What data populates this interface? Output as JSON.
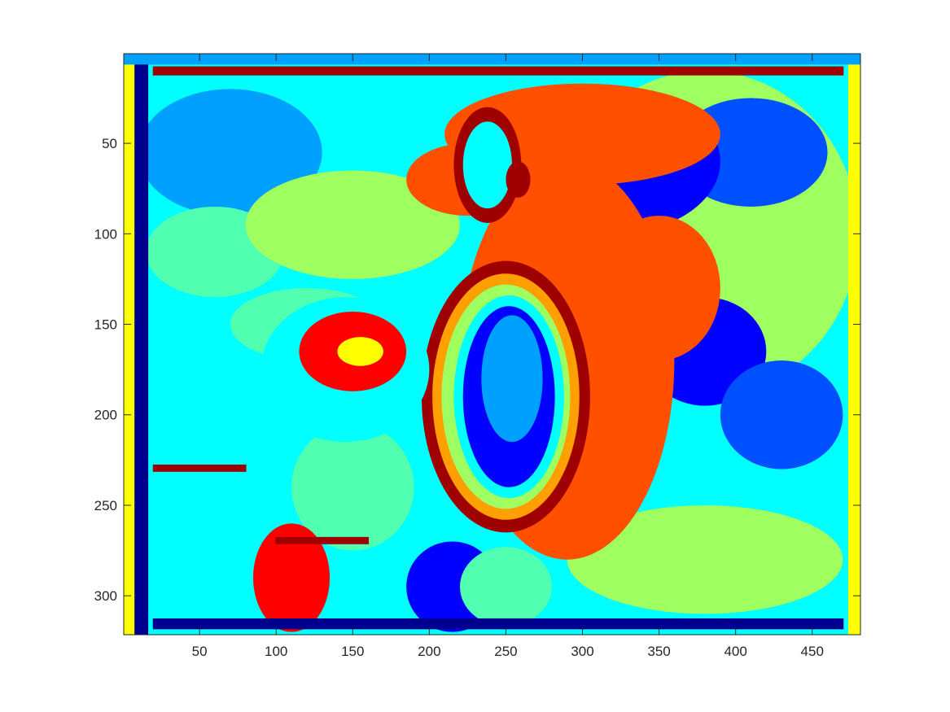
{
  "chart_data": {
    "type": "heatmap",
    "title": "",
    "xlabel": "",
    "ylabel": "",
    "xlim": [
      1,
      481
    ],
    "ylim": [
      1,
      321
    ],
    "y_reversed": true,
    "colormap": "jet",
    "color_levels": 12,
    "x_ticks": [
      50,
      100,
      150,
      200,
      250,
      300,
      350,
      400,
      450
    ],
    "x_tick_labels": [
      "50",
      "100",
      "150",
      "200",
      "250",
      "300",
      "350",
      "400",
      "450"
    ],
    "y_ticks": [
      50,
      100,
      150,
      200,
      250,
      300
    ],
    "y_tick_labels": [
      "50",
      "100",
      "150",
      "200",
      "250",
      "300"
    ],
    "grid": false,
    "legend": "none",
    "palette": [
      "#00008F",
      "#0000FF",
      "#0050FF",
      "#00A0FF",
      "#00FFFF",
      "#50FFB0",
      "#A0FF60",
      "#FFFF00",
      "#FFA000",
      "#FF5000",
      "#FF0000",
      "#9F0000"
    ],
    "regions": [
      {
        "type": "rect",
        "x": [
          1,
          481
        ],
        "y": [
          1,
          321
        ],
        "level": 4
      },
      {
        "type": "ellipse",
        "cx": 70,
        "cy": 55,
        "rx": 60,
        "ry": 35,
        "level": 3
      },
      {
        "type": "ellipse",
        "cx": 60,
        "cy": 110,
        "rx": 45,
        "ry": 25,
        "level": 5
      },
      {
        "type": "ellipse",
        "cx": 150,
        "cy": 95,
        "rx": 70,
        "ry": 30,
        "level": 6
      },
      {
        "type": "ellipse",
        "cx": 120,
        "cy": 150,
        "rx": 50,
        "ry": 20,
        "level": 5
      },
      {
        "type": "ellipse",
        "cx": 60,
        "cy": 250,
        "rx": 55,
        "ry": 50,
        "level": 4
      },
      {
        "type": "ellipse",
        "cx": 150,
        "cy": 240,
        "rx": 40,
        "ry": 35,
        "level": 5
      },
      {
        "type": "ellipse",
        "cx": 380,
        "cy": 100,
        "rx": 100,
        "ry": 90,
        "level": 6
      },
      {
        "type": "ellipse",
        "cx": 410,
        "cy": 55,
        "rx": 50,
        "ry": 30,
        "level": 2
      },
      {
        "type": "ellipse",
        "cx": 380,
        "cy": 165,
        "rx": 40,
        "ry": 30,
        "level": 1
      },
      {
        "type": "ellipse",
        "cx": 430,
        "cy": 200,
        "rx": 40,
        "ry": 30,
        "level": 2
      },
      {
        "type": "ellipse",
        "cx": 380,
        "cy": 280,
        "rx": 90,
        "ry": 30,
        "level": 6
      },
      {
        "type": "ellipse",
        "cx": 320,
        "cy": 60,
        "rx": 70,
        "ry": 40,
        "level": 1
      },
      {
        "type": "ellipse",
        "cx": 290,
        "cy": 170,
        "rx": 70,
        "ry": 110,
        "level": 9
      },
      {
        "type": "ellipse",
        "cx": 300,
        "cy": 45,
        "rx": 90,
        "ry": 28,
        "level": 9
      },
      {
        "type": "ellipse",
        "cx": 225,
        "cy": 70,
        "rx": 40,
        "ry": 20,
        "level": 9
      },
      {
        "type": "ellipse",
        "cx": 350,
        "cy": 130,
        "rx": 40,
        "ry": 40,
        "level": 9
      },
      {
        "type": "ellipse",
        "cx": 110,
        "cy": 290,
        "rx": 25,
        "ry": 30,
        "level": 10
      },
      {
        "type": "ellipse",
        "cx": 250,
        "cy": 190,
        "rx": 55,
        "ry": 75,
        "level": 11
      },
      {
        "type": "ellipse",
        "cx": 250,
        "cy": 190,
        "rx": 48,
        "ry": 68,
        "level": 8
      },
      {
        "type": "ellipse",
        "cx": 250,
        "cy": 190,
        "rx": 42,
        "ry": 62,
        "level": 6
      },
      {
        "type": "ellipse",
        "cx": 252,
        "cy": 190,
        "rx": 36,
        "ry": 56,
        "level": 4
      },
      {
        "type": "ellipse",
        "cx": 252,
        "cy": 190,
        "rx": 30,
        "ry": 50,
        "level": 1
      },
      {
        "type": "ellipse",
        "cx": 254,
        "cy": 180,
        "rx": 20,
        "ry": 35,
        "level": 3
      },
      {
        "type": "ellipse",
        "cx": 238,
        "cy": 62,
        "rx": 22,
        "ry": 32,
        "level": 11
      },
      {
        "type": "ellipse",
        "cx": 238,
        "cy": 62,
        "rx": 16,
        "ry": 24,
        "level": 4
      },
      {
        "type": "ellipse",
        "cx": 258,
        "cy": 70,
        "rx": 8,
        "ry": 10,
        "level": 11
      },
      {
        "type": "ellipse",
        "cx": 145,
        "cy": 175,
        "rx": 55,
        "ry": 40,
        "level": 4
      },
      {
        "type": "ellipse",
        "cx": 150,
        "cy": 165,
        "rx": 35,
        "ry": 22,
        "level": 10
      },
      {
        "type": "ellipse",
        "cx": 155,
        "cy": 165,
        "rx": 15,
        "ry": 8,
        "level": 7
      },
      {
        "type": "ellipse",
        "cx": 215,
        "cy": 295,
        "rx": 30,
        "ry": 25,
        "level": 1
      },
      {
        "type": "ellipse",
        "cx": 250,
        "cy": 295,
        "rx": 30,
        "ry": 22,
        "level": 5
      },
      {
        "type": "rect",
        "x": [
          1,
          8
        ],
        "y": [
          1,
          321
        ],
        "level": 7
      },
      {
        "type": "rect",
        "x": [
          8,
          16
        ],
        "y": [
          1,
          321
        ],
        "level": 0
      },
      {
        "type": "rect",
        "x": [
          474,
          481
        ],
        "y": [
          1,
          321
        ],
        "level": 7
      },
      {
        "type": "rect",
        "x": [
          1,
          481
        ],
        "y": [
          1,
          6
        ],
        "level": 3
      },
      {
        "type": "rect",
        "x": [
          20,
          470
        ],
        "y": [
          8,
          12
        ],
        "level": 11
      },
      {
        "type": "rect",
        "x": [
          20,
          470
        ],
        "y": [
          313,
          318
        ],
        "level": 0
      },
      {
        "type": "rect",
        "x": [
          20,
          80
        ],
        "y": [
          228,
          231
        ],
        "level": 11
      },
      {
        "type": "rect",
        "x": [
          100,
          160
        ],
        "y": [
          268,
          271
        ],
        "level": 11
      }
    ]
  }
}
